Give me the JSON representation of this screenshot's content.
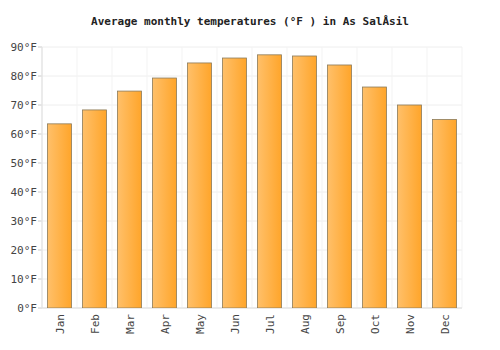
{
  "chart_data": {
    "type": "bar",
    "title": "Average monthly temperatures (°F ) in As SalÅsil",
    "categories": [
      "Jan",
      "Feb",
      "Mar",
      "Apr",
      "May",
      "Jun",
      "Jul",
      "Aug",
      "Sep",
      "Oct",
      "Nov",
      "Dec"
    ],
    "values": [
      63.5,
      68.3,
      74.8,
      79.3,
      84.5,
      86.2,
      87.3,
      86.9,
      83.8,
      76.2,
      70.0,
      65.0
    ],
    "color": "#ffa52a",
    "ylim": [
      0,
      90
    ],
    "yticks": [
      {
        "value": 0,
        "label": "0°F"
      },
      {
        "value": 10,
        "label": "10°F"
      },
      {
        "value": 20,
        "label": "20°F"
      },
      {
        "value": 30,
        "label": "30°F"
      },
      {
        "value": 40,
        "label": "40°F"
      },
      {
        "value": 50,
        "label": "50°F"
      },
      {
        "value": 60,
        "label": "60°F"
      },
      {
        "value": 70,
        "label": "70°F"
      },
      {
        "value": 80,
        "label": "80°F"
      },
      {
        "value": 90,
        "label": "90°F"
      }
    ],
    "grid": true
  }
}
